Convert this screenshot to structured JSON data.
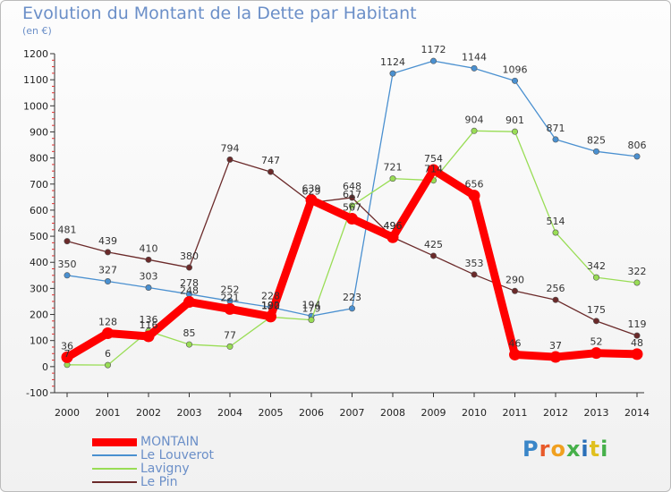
{
  "title": "Evolution du Montant de la Dette par Habitant",
  "subtitle": "(en €)",
  "logo_text": "Proxiti",
  "chart_data": {
    "type": "line",
    "x": [
      "2000",
      "2001",
      "2002",
      "2003",
      "2004",
      "2005",
      "2006",
      "2007",
      "2008",
      "2009",
      "2010",
      "2011",
      "2012",
      "2013",
      "2014"
    ],
    "ylim": [
      -100,
      1200
    ],
    "yticks": [
      -100,
      0,
      100,
      200,
      300,
      400,
      500,
      600,
      700,
      800,
      900,
      1000,
      1100,
      1200
    ],
    "grid": false,
    "legend_position": "bottom-left",
    "series": [
      {
        "name": "Le Louverot",
        "color": "#4a90d0",
        "width": 1.3,
        "marker": 3.2,
        "values": [
          350,
          327,
          303,
          278,
          252,
          228,
          194,
          223,
          1124,
          1172,
          1144,
          1096,
          871,
          825,
          806
        ]
      },
      {
        "name": "Lavigny",
        "color": "#99dd55",
        "width": 1.3,
        "marker": 3.2,
        "values": [
          7,
          6,
          136,
          85,
          77,
          190,
          179,
          617,
          721,
          714,
          904,
          901,
          514,
          342,
          322
        ]
      },
      {
        "name": "Le Pin",
        "color": "#6b2a2a",
        "width": 1.3,
        "marker": 3.2,
        "values": [
          481,
          439,
          410,
          380,
          794,
          747,
          629,
          648,
          496,
          425,
          353,
          290,
          256,
          175,
          119
        ]
      },
      {
        "name": "MONTAIN",
        "color": "#ff0000",
        "width": 9,
        "marker": 6.5,
        "values": [
          36,
          128,
          116,
          248,
          221,
          192,
          639,
          567,
          496,
          754,
          656,
          46,
          37,
          52,
          48
        ]
      }
    ],
    "legend_order": [
      "MONTAIN",
      "Le Louverot",
      "Lavigny",
      "Le Pin"
    ],
    "labels": [
      {
        "series": "Le Louverot",
        "text": [
          "350",
          "327",
          "303",
          "278",
          "252",
          "228",
          "194",
          "223",
          "1124",
          "1172",
          "1144",
          "1096",
          "871",
          "825",
          "806"
        ]
      },
      {
        "series": "Lavigny",
        "text": [
          "7",
          "6",
          "136",
          "85",
          "77",
          "190",
          "179",
          "617",
          "721",
          "714",
          "904",
          "901",
          "514",
          "342",
          "322"
        ]
      },
      {
        "series": "Le Pin",
        "text": [
          "481",
          "439",
          "410",
          "380",
          "794",
          "747",
          "629",
          "648",
          "496",
          "425",
          "353",
          "290",
          "256",
          "175",
          "119"
        ]
      },
      {
        "series": "MONTAIN",
        "text": [
          "36",
          "128",
          "116",
          "248",
          "221",
          "192",
          "639",
          "567",
          "496",
          "754",
          "656",
          "46",
          "37",
          "52",
          "48"
        ]
      }
    ]
  }
}
